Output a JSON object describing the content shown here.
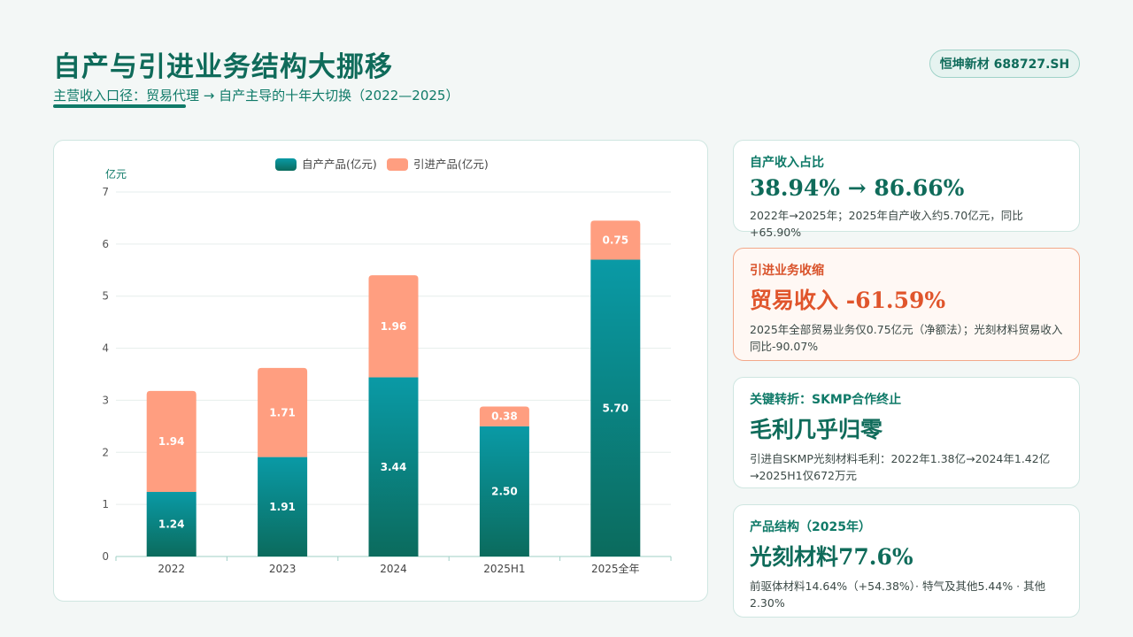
{
  "header": {
    "title": "自产与引进业务结构大挪移",
    "subtitle": "主营收入口径：贸易代理 → 自产主导的十年大切换（2022—2025）",
    "ticker": "恒坤新材 688727.SH"
  },
  "chart_data": {
    "type": "bar",
    "stacked": true,
    "categories": [
      "2022",
      "2023",
      "2024",
      "2025H1",
      "2025全年"
    ],
    "series": [
      {
        "name": "自产产品(亿元)",
        "values": [
          1.24,
          1.91,
          3.44,
          2.5,
          5.7
        ],
        "color": "#0b8f8c"
      },
      {
        "name": "引进产品(亿元)",
        "values": [
          1.94,
          1.71,
          1.96,
          0.38,
          0.75
        ],
        "color": "#ff9e80"
      }
    ],
    "ylabel": "亿元",
    "ylim": [
      0,
      7
    ],
    "yticks": [
      "0",
      "1",
      "2",
      "3",
      "4",
      "5",
      "6",
      "7"
    ],
    "grid": true,
    "legend": "top-center"
  },
  "cards": [
    {
      "label": "自产收入占比",
      "value": "38.94% → 86.66%",
      "note": "2022年→2025年；2025年自产收入约5.70亿元，同比+65.90%"
    },
    {
      "label": "引进业务收缩",
      "value": "贸易收入 -61.59%",
      "note": "2025年全部贸易业务仅0.75亿元（净额法）；光刻材料贸易收入同比-90.07%"
    },
    {
      "label": "关键转折：SKMP合作终止",
      "value": "毛利几乎归零",
      "note": "引进自SKMP光刻材料毛利：2022年1.38亿→2024年1.42亿→2025H1仅672万元"
    },
    {
      "label": "产品结构（2025年）",
      "value": "光刻材料77.6%",
      "note": "前驱体材料14.64%（+54.38%）· 特气及其他5.44% · 其他2.30%"
    }
  ]
}
